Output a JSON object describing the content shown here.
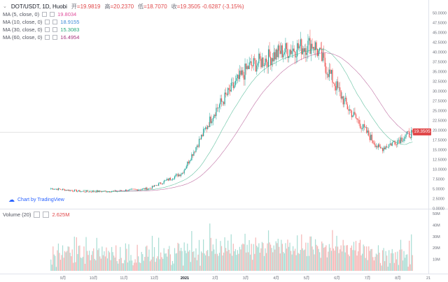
{
  "header": {
    "symbol": "DOT/USDT, 1D, Huobi",
    "ohlc": [
      {
        "k": "开",
        "v": "=19.9819"
      },
      {
        "k": "高",
        "v": "=20.2370"
      },
      {
        "k": "低",
        "v": "=18.7070"
      },
      {
        "k": "收",
        "v": "=19.3505 -0.6287 (-3.15%)"
      }
    ]
  },
  "ma_legend": [
    {
      "label": "MA (5, close, 0)",
      "value": "19.8034",
      "color": "#e04e9c"
    },
    {
      "label": "MA (10, close, 0)",
      "value": "18.9155",
      "color": "#3b8bd6"
    },
    {
      "label": "MA (30, close, 0)",
      "value": "15.3083",
      "color": "#24a87a"
    },
    {
      "label": "MA (60, close, 0)",
      "value": "16.4954",
      "color": "#a5357e"
    }
  ],
  "volume_legend": {
    "label": "Volume (20)",
    "value": "2.625M"
  },
  "branding": {
    "text": "Chart by TradingView"
  },
  "last_price_tag": "19.3505",
  "chart_data": [
    {
      "type": "candlestick",
      "title": "DOT/USDT, 1D, Huobi",
      "x_tick_labels": [
        "9月",
        "10月",
        "11月",
        "12月",
        "2021",
        "2月",
        "3月",
        "4月",
        "5月",
        "6月",
        "7月",
        "8月",
        "21"
      ],
      "y_tick_labels": [
        "50.0000",
        "47.5000",
        "45.0000",
        "42.5000",
        "40.0000",
        "37.5000",
        "35.0000",
        "32.5000",
        "30.0000",
        "27.5000",
        "25.0000",
        "22.5000",
        "20.0000",
        "17.5000",
        "15.0000",
        "12.5000",
        "10.0000",
        "7.5000",
        "5.0000",
        "2.5000",
        "0.0000"
      ],
      "ylim": [
        0,
        50
      ],
      "last_price": 19.3505,
      "up_color": "#26a69a",
      "down_color": "#ef5350",
      "monthly_close_approx": {
        "x": [
          "9月",
          "10月",
          "11月",
          "12月",
          "2021",
          "2月",
          "3月",
          "4月",
          "5月",
          "6月",
          "7月",
          "8月"
        ],
        "y": [
          5.0,
          4.2,
          4.3,
          5.0,
          9.0,
          25.0,
          36.0,
          40.0,
          42.0,
          26.0,
          15.0,
          19.3
        ]
      }
    },
    {
      "type": "bar",
      "title": "Volume (20)",
      "y_tick_labels": [
        "50M",
        "40M",
        "30M",
        "20M",
        "10M"
      ],
      "ylim": [
        0,
        50
      ],
      "last_value": "2.625M"
    }
  ]
}
